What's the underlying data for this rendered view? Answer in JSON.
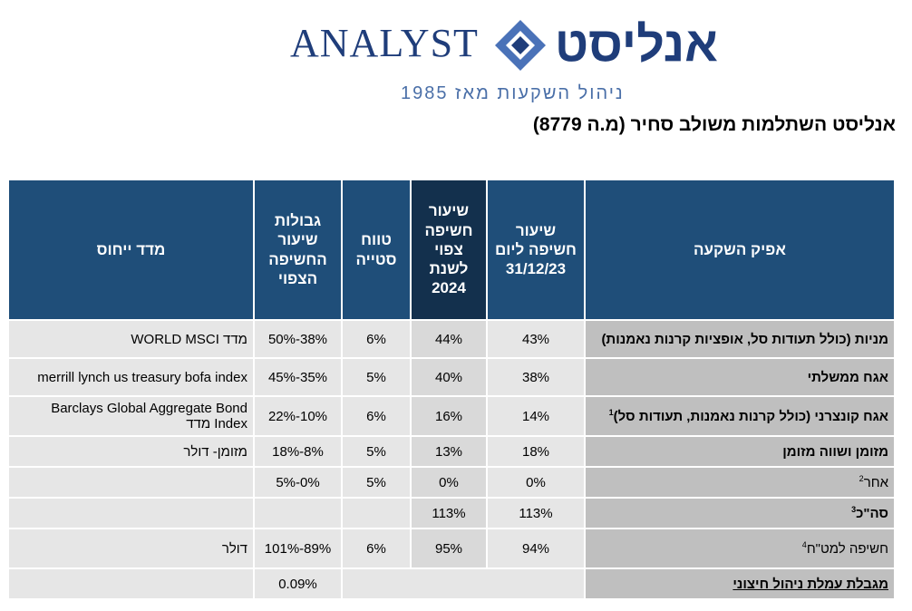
{
  "logo": {
    "name_en": "ANALYST",
    "name_he": "אנליסט",
    "tagline": "ניהול השקעות מאז 1985",
    "brand_color": "#1f3d7a"
  },
  "title": "אנליסט השתלמות משולב סחיר (מ.ה 8779)",
  "table": {
    "headers": {
      "channel": "אפיק השקעה",
      "exposure_now": "שיעור חשיפה ליום 31/12/23",
      "exposure_expected": "שיעור חשיפה צפוי לשנת 2024",
      "deviation": "טווח סטייה",
      "limits": "גבולות שיעור החשיפה הצפוי",
      "benchmark": "מדד ייחוס"
    },
    "rows": [
      {
        "channel": "מניות (כולל תעודות סל, אופציות קרנות נאמנות)",
        "sup": "",
        "now": "43%",
        "expected": "44%",
        "deviation": "6%",
        "limits": "38%-50%",
        "benchmark": "מדד WORLD MSCI"
      },
      {
        "channel": "אגח ממשלתי",
        "sup": "",
        "now": "38%",
        "expected": "40%",
        "deviation": "5%",
        "limits": "35%-45%",
        "benchmark": "merrill lynch us treasury  bofa index"
      },
      {
        "channel": "אגח קונצרני (כולל קרנות נאמנות, תעודות סל)",
        "sup": "1",
        "now": "14%",
        "expected": "16%",
        "deviation": "6%",
        "limits": "10%-22%",
        "benchmark": "Barclays Global Aggregate Bond Index מדד"
      },
      {
        "channel": "מזומן ושווה מזומן",
        "sup": "",
        "now": "18%",
        "expected": "13%",
        "deviation": "5%",
        "limits": "8%-18%",
        "benchmark": "מזומן- דולר"
      },
      {
        "channel": "אחר",
        "sup": "2",
        "now": "0%",
        "expected": "0%",
        "deviation": "5%",
        "limits": "0%-5%",
        "benchmark": ""
      },
      {
        "channel": "סה\"כ",
        "sup": "3",
        "now": "113%",
        "expected": "113%",
        "deviation": "",
        "limits": "",
        "benchmark": ""
      },
      {
        "channel": "חשיפה למט\"ח",
        "sup": "4",
        "now": "94%",
        "expected": "95%",
        "deviation": "6%",
        "limits": "89%-101%",
        "benchmark": "דולר"
      }
    ],
    "fee_row": {
      "label": "מגבלת עמלת ניהול חיצוני",
      "value": "0.09%"
    }
  }
}
